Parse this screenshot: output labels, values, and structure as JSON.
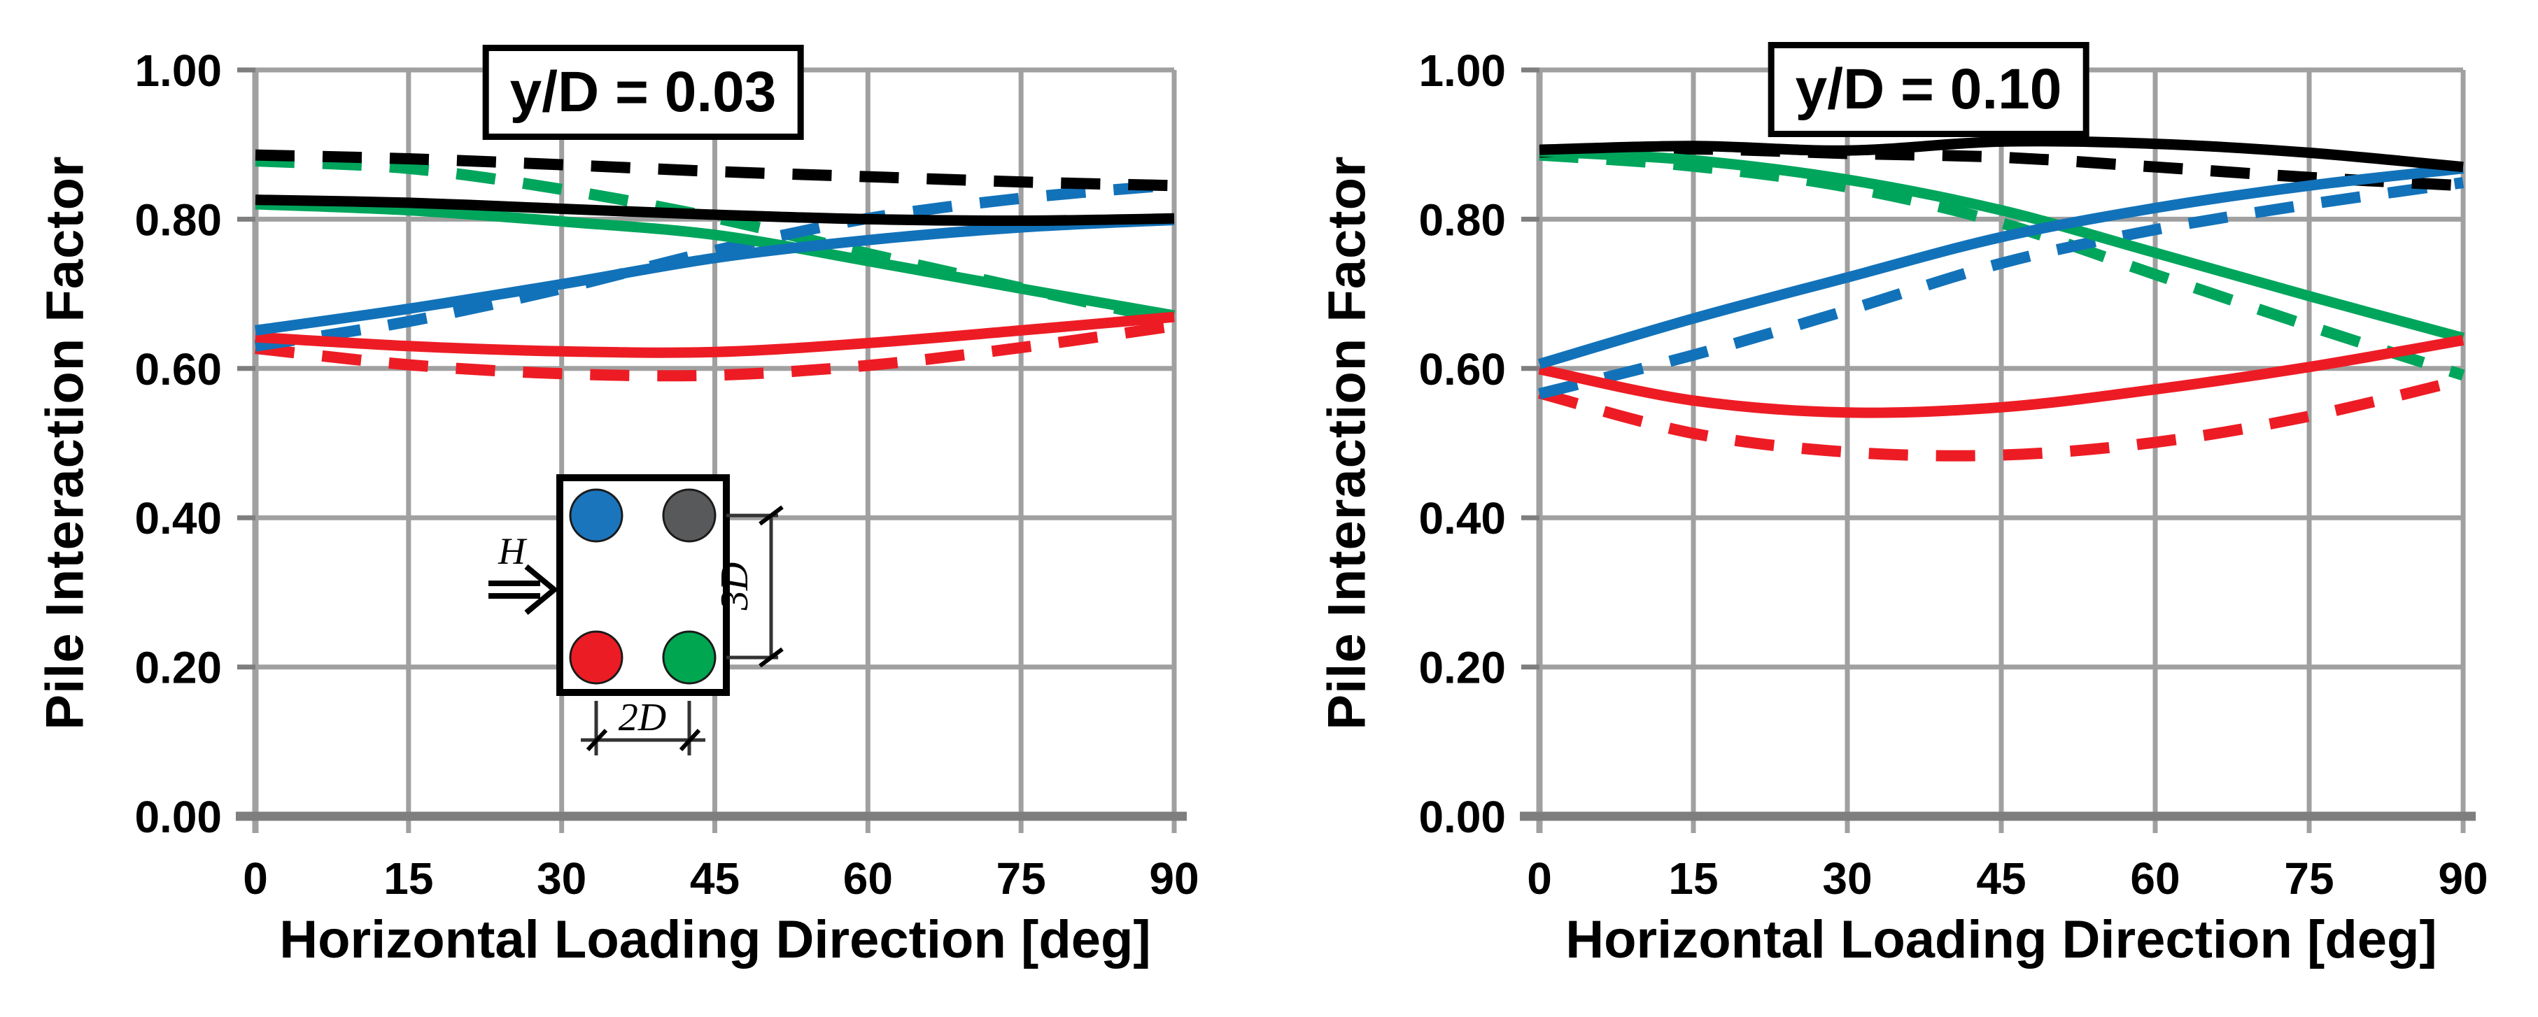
{
  "figure": {
    "background": "#ffffff",
    "shared_ylabel": "Pile Interaction Factor",
    "shared_xlabel": "Horizontal Loading Direction [deg]"
  },
  "colors": {
    "blue": "#1272B9",
    "green": "#00A55C",
    "red": "#ED1C24",
    "black": "#000000",
    "gray_pile": "#58595B",
    "gridline": "#A0A0A0",
    "axis": "#7E7E7E"
  },
  "chart_data": [
    {
      "type": "line",
      "title": "y/D = 0.03",
      "xlabel": "Horizontal Loading Direction [deg]",
      "ylabel": "Pile Interaction Factor",
      "xlim": [
        0,
        90
      ],
      "ylim": [
        0.0,
        1.0
      ],
      "grid": true,
      "legend_position": "none",
      "x_ticks": [
        "0",
        "15",
        "30",
        "45",
        "60",
        "75",
        "90"
      ],
      "y_ticks": [
        "1.00",
        "0.80",
        "0.60",
        "0.40",
        "0.20",
        "0.00"
      ],
      "x": [
        0,
        15,
        30,
        45,
        60,
        75,
        90
      ],
      "series": [
        {
          "id": "green-dashed",
          "pile": "green",
          "line_style": "dashed",
          "color_key": "green",
          "values": [
            0.878,
            0.868,
            0.84,
            0.802,
            0.754,
            0.708,
            0.664
          ]
        },
        {
          "id": "red-dashed",
          "pile": "red",
          "line_style": "dashed",
          "color_key": "red",
          "values": [
            0.627,
            0.605,
            0.593,
            0.591,
            0.604,
            0.628,
            0.657
          ]
        },
        {
          "id": "blue-dashed",
          "pile": "blue",
          "line_style": "dashed",
          "color_key": "blue",
          "values": [
            0.63,
            0.663,
            0.707,
            0.758,
            0.801,
            0.828,
            0.846
          ]
        },
        {
          "id": "black-dashed",
          "pile": "gray",
          "line_style": "dashed",
          "color_key": "black",
          "values": [
            0.886,
            0.881,
            0.873,
            0.864,
            0.857,
            0.85,
            0.845
          ]
        },
        {
          "id": "green-solid",
          "pile": "green",
          "line_style": "solid",
          "color_key": "green",
          "values": [
            0.82,
            0.812,
            0.797,
            0.779,
            0.744,
            0.707,
            0.671
          ]
        },
        {
          "id": "red-solid",
          "pile": "red",
          "line_style": "solid",
          "color_key": "red",
          "values": [
            0.642,
            0.63,
            0.623,
            0.622,
            0.634,
            0.651,
            0.669
          ]
        },
        {
          "id": "blue-solid",
          "pile": "blue",
          "line_style": "solid",
          "color_key": "blue",
          "values": [
            0.651,
            0.68,
            0.713,
            0.748,
            0.772,
            0.789,
            0.799
          ]
        },
        {
          "id": "black-solid",
          "pile": "gray",
          "line_style": "solid",
          "color_key": "black",
          "values": [
            0.826,
            0.822,
            0.814,
            0.806,
            0.8,
            0.798,
            0.801
          ]
        }
      ]
    },
    {
      "type": "line",
      "title": "y/D = 0.10",
      "xlabel": "Horizontal Loading Direction [deg]",
      "ylabel": "Pile Interaction Factor",
      "xlim": [
        0,
        90
      ],
      "ylim": [
        0.0,
        1.0
      ],
      "grid": true,
      "legend_position": "none",
      "x_ticks": [
        "0",
        "15",
        "30",
        "45",
        "60",
        "75",
        "90"
      ],
      "y_ticks": [
        "1.00",
        "0.80",
        "0.60",
        "0.40",
        "0.20",
        "0.00"
      ],
      "x": [
        0,
        15,
        30,
        45,
        60,
        75,
        90
      ],
      "series": [
        {
          "id": "green-dashed",
          "pile": "green",
          "line_style": "dashed",
          "color_key": "green",
          "values": [
            0.886,
            0.871,
            0.843,
            0.795,
            0.726,
            0.657,
            0.591
          ]
        },
        {
          "id": "red-dashed",
          "pile": "red",
          "line_style": "dashed",
          "color_key": "red",
          "values": [
            0.567,
            0.513,
            0.488,
            0.484,
            0.501,
            0.536,
            0.585
          ]
        },
        {
          "id": "blue-dashed",
          "pile": "blue",
          "line_style": "dashed",
          "color_key": "blue",
          "values": [
            0.566,
            0.618,
            0.678,
            0.741,
            0.786,
            0.82,
            0.849
          ]
        },
        {
          "id": "black-dashed",
          "pile": "gray",
          "line_style": "dashed",
          "color_key": "black",
          "values": [
            0.89,
            0.894,
            0.888,
            0.883,
            0.87,
            0.856,
            0.845
          ]
        },
        {
          "id": "green-solid",
          "pile": "green",
          "line_style": "solid",
          "color_key": "green",
          "values": [
            0.891,
            0.879,
            0.853,
            0.812,
            0.755,
            0.697,
            0.641
          ]
        },
        {
          "id": "red-solid",
          "pile": "red",
          "line_style": "solid",
          "color_key": "red",
          "values": [
            0.599,
            0.557,
            0.541,
            0.548,
            0.572,
            0.602,
            0.638
          ]
        },
        {
          "id": "blue-solid",
          "pile": "blue",
          "line_style": "solid",
          "color_key": "blue",
          "values": [
            0.606,
            0.667,
            0.722,
            0.776,
            0.815,
            0.845,
            0.868
          ]
        },
        {
          "id": "black-solid",
          "pile": "gray",
          "line_style": "solid",
          "color_key": "black",
          "values": [
            0.893,
            0.898,
            0.892,
            0.904,
            0.901,
            0.889,
            0.87
          ]
        }
      ]
    }
  ],
  "inset": {
    "arrow_label": "H",
    "vertical_dim_label": "3D",
    "horizontal_dim_label": "2D",
    "piles": [
      {
        "position": "top-left",
        "name": "blue",
        "color": "#1B75BC"
      },
      {
        "position": "top-right",
        "name": "gray",
        "color": "#58595B"
      },
      {
        "position": "bottom-left",
        "name": "red",
        "color": "#EC1C24"
      },
      {
        "position": "bottom-right",
        "name": "green",
        "color": "#00A650"
      }
    ]
  }
}
